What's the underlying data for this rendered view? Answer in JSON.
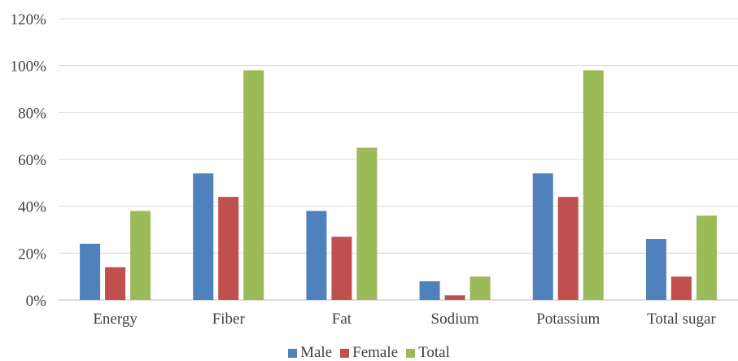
{
  "chart_data": {
    "type": "bar",
    "categories": [
      "Energy",
      "Fiber",
      "Fat",
      "Sodium",
      "Potassium",
      "Total sugar"
    ],
    "series": [
      {
        "name": "Male",
        "color": "#4F81BD",
        "values": [
          24,
          54,
          38,
          8,
          54,
          26
        ]
      },
      {
        "name": "Female",
        "color": "#C0504D",
        "values": [
          14,
          44,
          27,
          2,
          44,
          10
        ]
      },
      {
        "name": "Total",
        "color": "#9BBB59",
        "values": [
          38,
          98,
          65,
          10,
          98,
          36
        ]
      }
    ],
    "y_ticks": [
      "0%",
      "20%",
      "40%",
      "60%",
      "80%",
      "100%",
      "120%"
    ],
    "ylim": [
      0,
      120
    ],
    "grid": true,
    "legend_position": "bottom"
  }
}
